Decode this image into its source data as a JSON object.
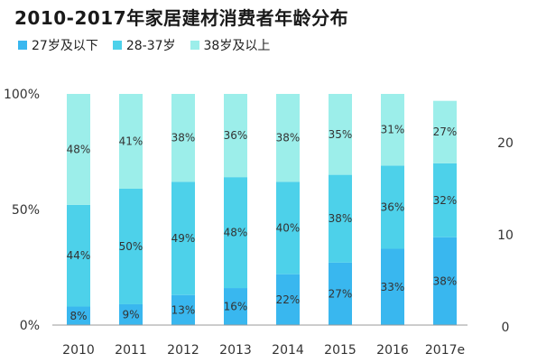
{
  "chart_data": {
    "type": "bar",
    "stacked": true,
    "title": "2010-2017年家居建材消费者年龄分布",
    "categories": [
      "2010",
      "2011",
      "2012",
      "2013",
      "2014",
      "2015",
      "2016",
      "2017e"
    ],
    "series": [
      {
        "name": "27岁及以下",
        "color": "#39b7ef",
        "values": [
          8,
          9,
          13,
          16,
          22,
          27,
          33,
          38
        ]
      },
      {
        "name": "28-37岁",
        "color": "#4dd1ea",
        "values": [
          44,
          50,
          49,
          48,
          40,
          38,
          36,
          32
        ]
      },
      {
        "name": "38岁及以上",
        "color": "#9ceeea",
        "values": [
          48,
          41,
          38,
          36,
          38,
          35,
          31,
          27
        ]
      }
    ],
    "value_labels": {
      "suffix": "%"
    },
    "y_left": {
      "ticks": [
        "0%",
        "50%",
        "100%"
      ],
      "tick_values": [
        0,
        50,
        100
      ],
      "ylim": [
        0,
        100
      ]
    },
    "y_right": {
      "ticks": [
        "0",
        "10",
        "20"
      ],
      "tick_values": [
        0,
        10,
        20
      ],
      "ylim": [
        0,
        24
      ]
    },
    "legend_position": "top-left",
    "grid": false
  }
}
